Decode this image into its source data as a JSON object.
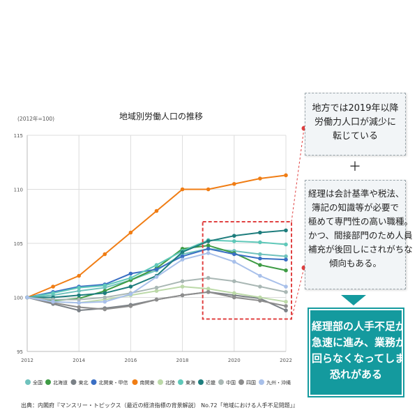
{
  "chart_data": {
    "type": "line",
    "title": "地域別労働人口の推移",
    "unit_label": "(2012年=100)",
    "x": [
      2012,
      2013,
      2014,
      2015,
      2016,
      2017,
      2018,
      2019,
      2020,
      2021,
      2022
    ],
    "xticks": [
      2012,
      2014,
      2016,
      2018,
      2020,
      2022
    ],
    "yticks": [
      95,
      100,
      105,
      110,
      115
    ],
    "ylim": [
      95,
      115
    ],
    "xlim": [
      2012,
      2022
    ],
    "grid": true,
    "legend_position": "bottom",
    "series": [
      {
        "name": "全国",
        "color": "#6fc2bd",
        "values": [
          100,
          100.2,
          100.6,
          100.9,
          101.6,
          102.5,
          104.0,
          104.5,
          104.3,
          104.0,
          103.8
        ]
      },
      {
        "name": "北海道",
        "color": "#3e9b44",
        "values": [
          100,
          99.7,
          99.9,
          100.6,
          101.6,
          102.7,
          104.5,
          104.8,
          104.1,
          103.0,
          102.5
        ]
      },
      {
        "name": "東北",
        "color": "#7a8086",
        "values": [
          100,
          99.4,
          98.8,
          99.0,
          99.3,
          99.8,
          100.2,
          100.5,
          100.2,
          99.9,
          98.8
        ]
      },
      {
        "name": "北関東・甲信",
        "color": "#3a6fc4",
        "values": [
          100,
          100.5,
          101.0,
          101.2,
          102.2,
          102.6,
          103.8,
          104.5,
          104.0,
          103.6,
          103.5
        ]
      },
      {
        "name": "南関東",
        "color": "#f07d14",
        "values": [
          100,
          101.0,
          102.0,
          104.0,
          106.0,
          108.0,
          110.0,
          110.0,
          110.5,
          111.0,
          111.3
        ]
      },
      {
        "name": "北陸",
        "color": "#bcd9a8",
        "values": [
          100,
          99.6,
          99.5,
          99.8,
          100.2,
          100.6,
          101.0,
          100.8,
          100.4,
          100.0,
          99.6
        ]
      },
      {
        "name": "東海",
        "color": "#5fc8b9",
        "values": [
          100,
          100.4,
          100.9,
          101.1,
          101.8,
          103.0,
          104.3,
          105.3,
          105.2,
          105.1,
          104.9
        ]
      },
      {
        "name": "近畿",
        "color": "#1e7d7d",
        "values": [
          100,
          100.0,
          100.2,
          100.4,
          101.0,
          102.0,
          104.2,
          105.2,
          105.7,
          106.0,
          106.2
        ]
      },
      {
        "name": "中国",
        "color": "#a9b7b4",
        "values": [
          100,
          99.8,
          99.8,
          100.0,
          100.4,
          100.9,
          101.5,
          101.8,
          101.5,
          101.0,
          100.5
        ]
      },
      {
        "name": "四国",
        "color": "#8d8d8d",
        "values": [
          100,
          99.5,
          99.1,
          98.9,
          99.2,
          99.8,
          100.2,
          100.5,
          100.0,
          99.7,
          99.2
        ]
      },
      {
        "name": "九州・沖縄",
        "color": "#a8c0ea",
        "values": [
          100,
          99.6,
          99.5,
          99.6,
          100.3,
          101.9,
          103.5,
          104.1,
          103.3,
          102.0,
          101.0
        ]
      }
    ],
    "highlight": {
      "x_range": [
        2019,
        2022
      ],
      "y_range": [
        98,
        107
      ]
    }
  },
  "notes": {
    "note1": [
      "地方では2019年以降",
      "労働力人口が減少に",
      "転じている"
    ],
    "plus": "＋",
    "note2": [
      "経理は会計基準や税法、",
      "簿記の知識等が必要で",
      "極めて専門性の高い職種。",
      "かつ、間接部門のため人員",
      "補充が後回しにされがちな",
      "傾向もある。"
    ],
    "conclusion": [
      "経理部の人手不足が",
      "急速に進み、業務が",
      "回らなくなってしまう",
      "恐れがある"
    ]
  },
  "colors": {
    "accent": "#149a9e",
    "highlight_box": "#e04040"
  },
  "source": "出典：内閣府『マンスリー・トピックス（最近の経済指標の背景解説） No.72「地域における人手不足問題」』"
}
